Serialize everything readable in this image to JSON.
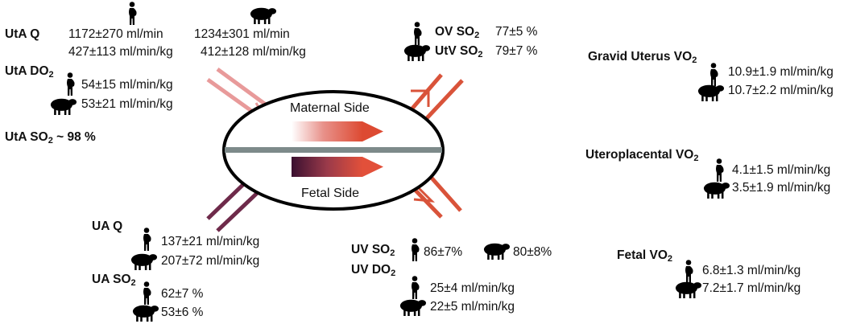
{
  "icons": {
    "human": "pregnant-woman-icon",
    "sheep": "sheep-icon"
  },
  "colors": {
    "maternal_in": "#e89a9a",
    "maternal_out": "#d9533a",
    "fetal_in": "#6e2a4a",
    "fetal_out": "#d9533a",
    "membrane": "#7d8a8a"
  },
  "center": {
    "maternal_label": "Maternal Side",
    "fetal_label": "Fetal Side"
  },
  "uta_q": {
    "label": "UtA Q",
    "human": "1172±270 ml/min",
    "human_kg": "427±113 ml/min/kg",
    "sheep": "1234±301 ml/min",
    "sheep_kg": "412±128 ml/min/kg"
  },
  "uta_do2": {
    "label": "UtA DO",
    "sub": "2",
    "human": "54±15 ml/min/kg",
    "sheep": "53±21 ml/min/kg"
  },
  "uta_so2": {
    "label": "UtA SO",
    "sub": "2",
    "rest": " ~ 98 %"
  },
  "ov_so2": {
    "label": "OV SO",
    "sub": "2",
    "value": "77±5 %"
  },
  "utv_so2": {
    "label": "UtV SO",
    "sub": "2",
    "value": "79±7 %"
  },
  "gravid_uterus_vo2": {
    "label": "Gravid Uterus VO",
    "sub": "2",
    "human": "10.9±1.9 ml/min/kg",
    "sheep": "10.7±2.2 ml/min/kg"
  },
  "uteroplacental_vo2": {
    "label": "Uteroplacental VO",
    "sub": "2",
    "human": "4.1±1.5 ml/min/kg",
    "sheep": "3.5±1.9 ml/min/kg"
  },
  "fetal_vo2": {
    "label": "Fetal VO",
    "sub": "2",
    "human": "6.8±1.3 ml/min/kg",
    "sheep": "7.2±1.7 ml/min/kg"
  },
  "ua_q": {
    "label": "UA Q",
    "human": "137±21 ml/min/kg",
    "sheep": "207±72 ml/min/kg"
  },
  "ua_so2": {
    "label": "UA SO",
    "sub": "2",
    "human": "62±7 %",
    "sheep": "53±6 %"
  },
  "uv_so2": {
    "label": "UV SO",
    "sub": "2",
    "human": "86±7%",
    "sheep": "80±8%"
  },
  "uv_do2": {
    "label": "UV DO",
    "sub": "2",
    "human": "25±4 ml/min/kg",
    "sheep": "22±5 ml/min/kg"
  }
}
